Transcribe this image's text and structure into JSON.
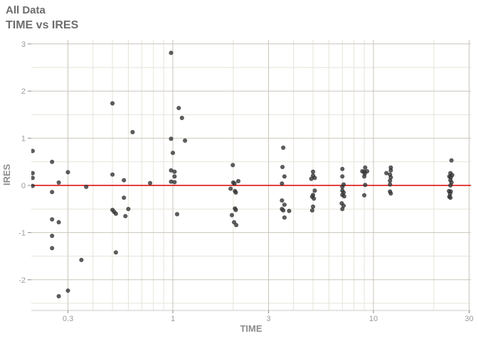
{
  "header": {
    "title": "All Data",
    "subtitle": "TIME vs IRES"
  },
  "colors": {
    "background": "#ffffff",
    "title_text": "#6d6d6d",
    "axis_text": "#9a9a9a",
    "axis_title_text": "#8c8c8c",
    "grid_major": "#c9c6ba",
    "grid_minor": "#e6e3d9",
    "axis_line": "#c8c8c8",
    "tick_mark": "#8a8a8a",
    "reference_line": "#de0000",
    "point": "#3c3c3c"
  },
  "chart_data": {
    "type": "scatter",
    "title": "All Data",
    "subtitle": "TIME vs IRES",
    "xlabel": "TIME",
    "ylabel": "IRES",
    "x_scale": "log10",
    "xlim": [
      0.197,
      30.6
    ],
    "ylim": [
      -2.65,
      3.07
    ],
    "x_ticks": [
      0.3,
      1,
      3,
      10,
      30
    ],
    "x_tick_labels": [
      "0.3",
      "1",
      "3",
      "10",
      "30"
    ],
    "x_minor_ticks": [
      0.4,
      0.5,
      0.6,
      0.7,
      0.8,
      0.9,
      2,
      4,
      5,
      6,
      7,
      8,
      9,
      20
    ],
    "y_ticks": [
      -2,
      -1,
      0,
      1,
      2,
      3
    ],
    "y_tick_labels": [
      "-2",
      "-1",
      "0",
      "1",
      "2",
      "3"
    ],
    "y_minor_ticks": [
      -2.5,
      -1.5,
      -0.5,
      0.5,
      1.5,
      2.5
    ],
    "grid": true,
    "legend": false,
    "reference_line": {
      "y": 0,
      "color": "#de0000"
    },
    "points": [
      [
        0.2,
        0.73
      ],
      [
        0.2,
        0.26
      ],
      [
        0.2,
        0.16
      ],
      [
        0.2,
        -0.01
      ],
      [
        0.25,
        0.5
      ],
      [
        0.25,
        -0.14
      ],
      [
        0.25,
        -0.72
      ],
      [
        0.25,
        -1.07
      ],
      [
        0.25,
        -1.33
      ],
      [
        0.27,
        0.06
      ],
      [
        0.27,
        -0.78
      ],
      [
        0.27,
        -2.35
      ],
      [
        0.3,
        0.28
      ],
      [
        0.3,
        -2.23
      ],
      [
        0.35,
        -1.58
      ],
      [
        0.37,
        -0.03
      ],
      [
        0.5,
        1.74
      ],
      [
        0.5,
        0.23
      ],
      [
        0.5,
        -0.52
      ],
      [
        0.51,
        -0.56
      ],
      [
        0.52,
        -0.6
      ],
      [
        0.52,
        -1.42
      ],
      [
        0.57,
        0.11
      ],
      [
        0.57,
        -0.26
      ],
      [
        0.6,
        -0.5
      ],
      [
        0.58,
        -0.65
      ],
      [
        0.63,
        1.13
      ],
      [
        0.77,
        0.05
      ],
      [
        0.98,
        2.81
      ],
      [
        0.98,
        0.99
      ],
      [
        1.0,
        0.69
      ],
      [
        0.98,
        0.32
      ],
      [
        1.02,
        0.29
      ],
      [
        1.02,
        0.19
      ],
      [
        0.98,
        0.08
      ],
      [
        1.02,
        0.07
      ],
      [
        1.07,
        1.64
      ],
      [
        1.11,
        1.43
      ],
      [
        1.15,
        0.95
      ],
      [
        1.05,
        -0.61
      ],
      [
        1.99,
        0.43
      ],
      [
        2.0,
        0.06
      ],
      [
        2.03,
        0.04
      ],
      [
        2.12,
        0.09
      ],
      [
        1.94,
        -0.07
      ],
      [
        2.04,
        -0.12
      ],
      [
        2.06,
        -0.15
      ],
      [
        2.04,
        -0.49
      ],
      [
        2.06,
        -0.52
      ],
      [
        1.97,
        -0.63
      ],
      [
        2.02,
        -0.78
      ],
      [
        2.07,
        -0.84
      ],
      [
        3.55,
        0.8
      ],
      [
        3.52,
        0.39
      ],
      [
        3.6,
        0.19
      ],
      [
        3.5,
        0.04
      ],
      [
        3.5,
        -0.32
      ],
      [
        3.6,
        -0.41
      ],
      [
        3.5,
        -0.5
      ],
      [
        3.55,
        -0.53
      ],
      [
        3.8,
        -0.54
      ],
      [
        3.6,
        -0.68
      ],
      [
        5.0,
        0.29
      ],
      [
        5.0,
        0.21
      ],
      [
        5.1,
        0.16
      ],
      [
        4.9,
        0.14
      ],
      [
        5.1,
        -0.11
      ],
      [
        5.0,
        -0.2
      ],
      [
        4.95,
        -0.24
      ],
      [
        5.05,
        -0.28
      ],
      [
        5.0,
        -0.45
      ],
      [
        4.95,
        -0.53
      ],
      [
        7.0,
        0.35
      ],
      [
        7.0,
        0.19
      ],
      [
        7.1,
        0.02
      ],
      [
        7.0,
        -0.03
      ],
      [
        7.0,
        -0.11
      ],
      [
        7.1,
        -0.15
      ],
      [
        7.0,
        -0.2
      ],
      [
        7.15,
        -0.23
      ],
      [
        6.95,
        -0.38
      ],
      [
        7.1,
        -0.43
      ],
      [
        7.0,
        -0.5
      ],
      [
        9.1,
        0.38
      ],
      [
        8.8,
        0.3
      ],
      [
        9.0,
        0.29
      ],
      [
        9.3,
        0.3
      ],
      [
        9.05,
        0.25
      ],
      [
        9.0,
        0.19
      ],
      [
        9.1,
        0.01
      ],
      [
        9.0,
        -0.21
      ],
      [
        12.2,
        0.38
      ],
      [
        12.2,
        0.32
      ],
      [
        11.6,
        0.26
      ],
      [
        12.1,
        0.23
      ],
      [
        12.2,
        0.17
      ],
      [
        12.1,
        0.1
      ],
      [
        12.1,
        0.02
      ],
      [
        12.1,
        -0.13
      ],
      [
        12.2,
        -0.17
      ],
      [
        24.5,
        0.53
      ],
      [
        24.2,
        0.26
      ],
      [
        24.7,
        0.22
      ],
      [
        23.9,
        0.19
      ],
      [
        24.3,
        0.17
      ],
      [
        24.2,
        0.11
      ],
      [
        24.5,
        0.06
      ],
      [
        24.2,
        0.0
      ],
      [
        23.8,
        -0.12
      ],
      [
        24.3,
        -0.13
      ],
      [
        24.1,
        -0.18
      ],
      [
        23.9,
        -0.24
      ],
      [
        24.2,
        -0.26
      ]
    ]
  }
}
